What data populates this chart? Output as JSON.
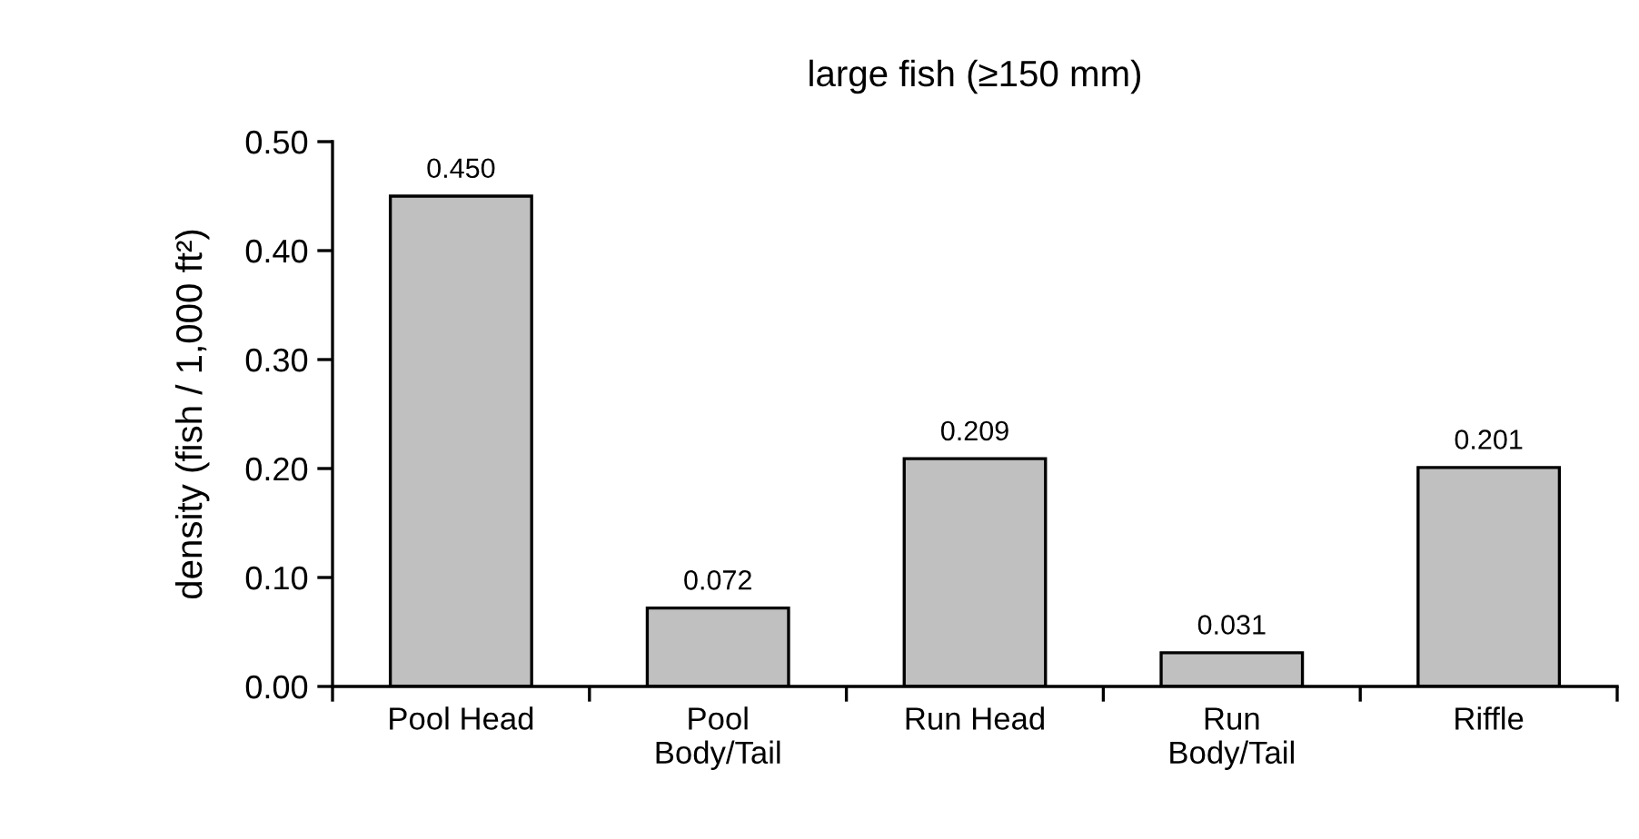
{
  "chart_data": {
    "type": "bar",
    "title": "large fish (≥150 mm)",
    "ylabel": "density (fish / 1,000 ft²)",
    "categories": [
      "Pool Head",
      "Pool\nBody/Tail",
      "Run Head",
      "Run\nBody/Tail",
      "Riffle"
    ],
    "values": [
      0.45,
      0.072,
      0.209,
      0.031,
      0.201
    ],
    "value_labels": [
      "0.450",
      "0.072",
      "0.209",
      "0.031",
      "0.201"
    ],
    "color": "#c0c0c0",
    "ylim": [
      0,
      0.5
    ],
    "yticks": [
      {
        "value": 0,
        "label": "0.00"
      },
      {
        "value": 0.1,
        "label": "0.10"
      },
      {
        "value": 0.2,
        "label": "0.20"
      },
      {
        "value": 0.3,
        "label": "0.30"
      },
      {
        "value": 0.4,
        "label": "0.40"
      },
      {
        "value": 0.5,
        "label": "0.50"
      }
    ],
    "grid": false,
    "legend": false
  }
}
